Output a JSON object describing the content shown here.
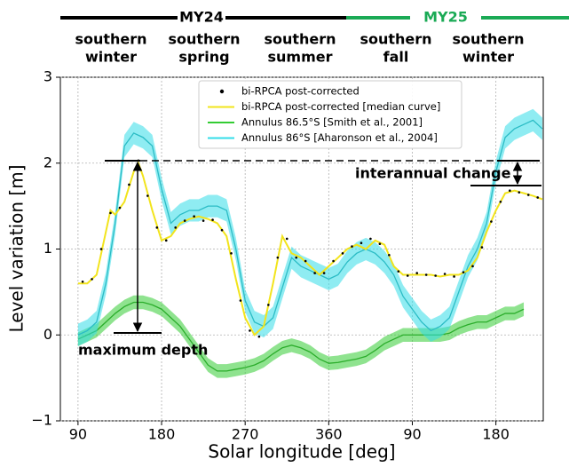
{
  "chart_data": {
    "type": "line",
    "x_label": "Solar longitude [deg]",
    "y_label": "Level variation [m]",
    "xlim": [
      71,
      591
    ],
    "ylim": [
      -1,
      3
    ],
    "xticks": [
      90,
      180,
      270,
      360,
      {
        "value": 450,
        "label": "90"
      },
      {
        "value": 540,
        "label": "180"
      }
    ],
    "yticks": [
      {
        "value": -1,
        "label": "−1"
      },
      0,
      1,
      2,
      3
    ],
    "grid": true,
    "legend": "upper center",
    "mars_years": [
      {
        "label": "MY24",
        "color": "#000000"
      },
      {
        "label": "MY25",
        "color": "#1aaa55"
      }
    ],
    "seasons": [
      [
        "southern",
        "winter"
      ],
      [
        "southern",
        "spring"
      ],
      [
        "southern",
        "summer"
      ],
      [
        "southern",
        "fall"
      ],
      [
        "southern",
        "winter"
      ]
    ],
    "annotations": [
      "interannual change",
      "maximum depth"
    ],
    "series": [
      {
        "name": "bi-RPCA post-corrected",
        "style": "points",
        "color": "#000000",
        "x": [
          95,
          105,
          115,
          125,
          135,
          145,
          155,
          165,
          175,
          185,
          195,
          205,
          215,
          225,
          235,
          245,
          255,
          265,
          275,
          285,
          295,
          305,
          315,
          325,
          335,
          345,
          355,
          365,
          375,
          385,
          395,
          405,
          415,
          425,
          435,
          445,
          455,
          465,
          475,
          485,
          495,
          505,
          515,
          525,
          535,
          545,
          555,
          565,
          575,
          585
        ],
        "values": [
          0.62,
          0.65,
          1.0,
          1.42,
          1.48,
          1.75,
          2.03,
          1.62,
          1.25,
          1.1,
          1.25,
          1.33,
          1.38,
          1.33,
          1.34,
          1.22,
          0.95,
          0.4,
          0.05,
          -0.02,
          0.35,
          0.9,
          1.12,
          0.9,
          0.86,
          0.72,
          0.72,
          0.86,
          0.95,
          1.03,
          1.07,
          1.12,
          1.06,
          0.93,
          0.74,
          0.69,
          0.72,
          0.7,
          0.69,
          0.71,
          0.68,
          0.73,
          0.8,
          1.02,
          1.32,
          1.55,
          1.68,
          1.66,
          1.63,
          1.6
        ]
      },
      {
        "name": "bi-RPCA post-corrected [median curve]",
        "style": "line",
        "color": "#f2e41c",
        "x": [
          90,
          100,
          110,
          120,
          125,
          130,
          140,
          150,
          155,
          160,
          170,
          180,
          190,
          200,
          210,
          220,
          230,
          240,
          250,
          260,
          270,
          280,
          290,
          300,
          310,
          320,
          330,
          340,
          350,
          360,
          370,
          380,
          390,
          400,
          410,
          420,
          430,
          440,
          450,
          460,
          470,
          480,
          490,
          500,
          510,
          520,
          530,
          540,
          550,
          560,
          570,
          580,
          590
        ],
        "values": [
          0.6,
          0.6,
          0.7,
          1.2,
          1.45,
          1.4,
          1.55,
          1.9,
          2.0,
          1.85,
          1.45,
          1.1,
          1.15,
          1.3,
          1.35,
          1.38,
          1.35,
          1.3,
          1.15,
          0.65,
          0.2,
          0.0,
          0.1,
          0.6,
          1.15,
          0.95,
          0.9,
          0.8,
          0.7,
          0.8,
          0.9,
          1.0,
          1.05,
          1.0,
          1.1,
          1.05,
          0.8,
          0.7,
          0.7,
          0.7,
          0.7,
          0.68,
          0.7,
          0.7,
          0.75,
          0.9,
          1.2,
          1.45,
          1.65,
          1.68,
          1.65,
          1.62,
          1.58
        ]
      },
      {
        "name": "Annulus 86.5°S [Smith et al., 2001]",
        "style": "band",
        "color": "#33cc33",
        "x": [
          90,
          100,
          110,
          120,
          130,
          140,
          150,
          160,
          170,
          180,
          190,
          200,
          210,
          220,
          230,
          240,
          250,
          260,
          270,
          280,
          290,
          300,
          310,
          320,
          330,
          340,
          350,
          360,
          370,
          380,
          390,
          400,
          410,
          420,
          430,
          440,
          450,
          460,
          470,
          480,
          490,
          500,
          510,
          520,
          530,
          540,
          550,
          560,
          570
        ],
        "values": [
          -0.05,
          0.0,
          0.05,
          0.15,
          0.25,
          0.33,
          0.38,
          0.38,
          0.35,
          0.3,
          0.2,
          0.1,
          -0.05,
          -0.2,
          -0.35,
          -0.42,
          -0.42,
          -0.4,
          -0.38,
          -0.35,
          -0.3,
          -0.22,
          -0.15,
          -0.12,
          -0.15,
          -0.2,
          -0.28,
          -0.33,
          -0.32,
          -0.3,
          -0.28,
          -0.25,
          -0.18,
          -0.1,
          -0.05,
          0.0,
          0.0,
          0.0,
          0.0,
          0.0,
          0.02,
          0.08,
          0.12,
          0.15,
          0.15,
          0.2,
          0.25,
          0.25,
          0.3
        ],
        "errors": [
          0.08,
          0.08,
          0.08,
          0.08,
          0.08,
          0.08,
          0.08,
          0.08,
          0.08,
          0.08,
          0.08,
          0.08,
          0.08,
          0.08,
          0.08,
          0.08,
          0.08,
          0.08,
          0.08,
          0.08,
          0.08,
          0.08,
          0.08,
          0.08,
          0.08,
          0.08,
          0.08,
          0.08,
          0.08,
          0.08,
          0.08,
          0.08,
          0.08,
          0.08,
          0.08,
          0.08,
          0.08,
          0.08,
          0.08,
          0.08,
          0.08,
          0.08,
          0.08,
          0.08,
          0.08,
          0.08,
          0.08,
          0.08,
          0.08
        ]
      },
      {
        "name": "Annulus 86°S [Aharonson et al., 2004]",
        "style": "band",
        "color": "#33dde8",
        "x": [
          90,
          100,
          110,
          120,
          130,
          140,
          150,
          160,
          170,
          180,
          190,
          200,
          210,
          220,
          230,
          240,
          250,
          260,
          270,
          280,
          290,
          300,
          310,
          320,
          330,
          340,
          350,
          360,
          370,
          380,
          390,
          400,
          410,
          420,
          430,
          440,
          450,
          460,
          470,
          480,
          490,
          500,
          510,
          520,
          530,
          540,
          550,
          560,
          570,
          580,
          590
        ],
        "values": [
          0.0,
          0.05,
          0.15,
          0.6,
          1.3,
          2.2,
          2.35,
          2.3,
          2.2,
          1.7,
          1.3,
          1.4,
          1.45,
          1.45,
          1.5,
          1.5,
          1.45,
          1.0,
          0.4,
          0.15,
          0.1,
          0.2,
          0.55,
          0.9,
          0.8,
          0.75,
          0.7,
          0.65,
          0.7,
          0.85,
          0.95,
          1.0,
          0.95,
          0.85,
          0.7,
          0.45,
          0.3,
          0.15,
          0.05,
          0.1,
          0.2,
          0.5,
          0.8,
          1.0,
          1.3,
          1.9,
          2.3,
          2.4,
          2.45,
          2.5,
          2.4
        ],
        "errors": [
          0.13,
          0.13,
          0.13,
          0.13,
          0.13,
          0.13,
          0.13,
          0.13,
          0.13,
          0.13,
          0.13,
          0.13,
          0.13,
          0.13,
          0.13,
          0.13,
          0.13,
          0.13,
          0.13,
          0.13,
          0.13,
          0.13,
          0.13,
          0.13,
          0.13,
          0.13,
          0.13,
          0.13,
          0.13,
          0.13,
          0.13,
          0.13,
          0.13,
          0.13,
          0.13,
          0.13,
          0.13,
          0.13,
          0.13,
          0.13,
          0.13,
          0.13,
          0.13,
          0.13,
          0.13,
          0.13,
          0.13,
          0.13,
          0.13,
          0.13,
          0.13
        ]
      }
    ]
  }
}
